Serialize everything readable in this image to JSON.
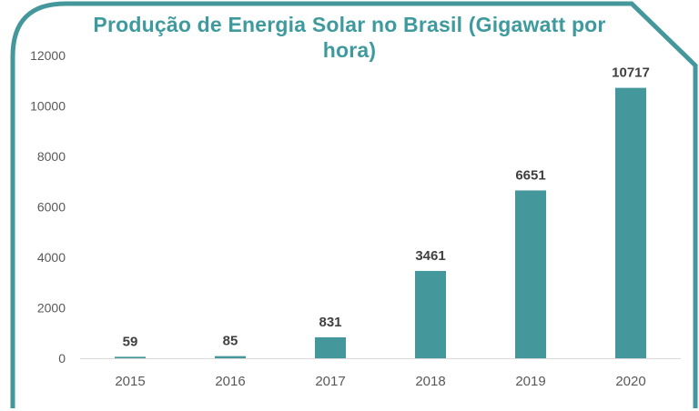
{
  "chart_data": {
    "type": "bar",
    "title_lines": [
      "Produção de Energia Solar no Brasil (Gigawatt por",
      "hora)"
    ],
    "categories": [
      "2015",
      "2016",
      "2017",
      "2018",
      "2019",
      "2020"
    ],
    "values": [
      59,
      85,
      831,
      3461,
      6651,
      10717
    ],
    "data_labels": [
      "59",
      "85",
      "831",
      "3461",
      "6651",
      "10717"
    ],
    "ylim": [
      0,
      12000
    ],
    "yticks": [
      0,
      2000,
      4000,
      6000,
      8000,
      10000,
      12000
    ],
    "ytick_labels": [
      "0",
      "2000",
      "4000",
      "6000",
      "8000",
      "10000",
      "12000"
    ],
    "xlabel": "",
    "ylabel": "",
    "grid": false,
    "legend": "none",
    "colors": {
      "bar": "#44979a",
      "title": "#3e9a9c",
      "frame": "#44979a"
    }
  }
}
